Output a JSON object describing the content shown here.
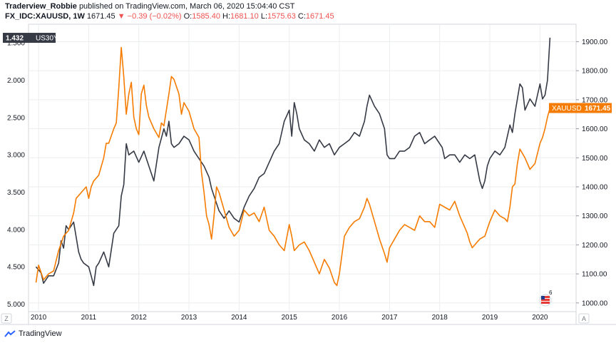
{
  "header": {
    "author": "Traderview_Robbie",
    "published_text": "published on TradingView.com, March 06, 2020 15:04:40 CST",
    "symbol": "FX_IDC:XAUUSD, 1W",
    "last": "1671.45",
    "change": "▼ −0.39 (−0.02%)",
    "o_label": "O:",
    "o_value": "1585.40",
    "h_label": "H:",
    "h_value": "1681.10",
    "l_label": "L:",
    "l_value": "1575.63",
    "c_label": "C:",
    "c_value": "1671.45"
  },
  "footer": {
    "brand": "TradingView"
  },
  "chart_data": {
    "type": "line",
    "x_ticks": [
      "2010",
      "2011",
      "2012",
      "2013",
      "2014",
      "2015",
      "2016",
      "2017",
      "2018",
      "2019",
      "2020"
    ],
    "left_axis": {
      "ticks": [
        "1.500",
        "2.000",
        "2.500",
        "3.000",
        "3.500",
        "4.000",
        "4.500",
        "5.000"
      ],
      "inverted": true,
      "range": [
        1.25,
        5.1
      ]
    },
    "right_axis": {
      "ticks": [
        "1000.00",
        "1100.00",
        "1200.00",
        "1300.00",
        "1400.00",
        "1500.00",
        "1600.00",
        "1700.00",
        "1800.00",
        "1900.00"
      ],
      "range": [
        970,
        1960
      ]
    },
    "left_badge": {
      "value": "1.432",
      "name": "US30Y"
    },
    "right_badge": {
      "name": "XAUUSD",
      "value": "1671.45"
    },
    "corner_left": "Z",
    "corner_right": "A",
    "event_badge": "6",
    "colors": {
      "gold": "#f57c00",
      "us30y": "#363a45",
      "grid": "#ecedef"
    },
    "series": [
      {
        "name": "US30Y",
        "axis": "left",
        "x": [
          2009.95,
          2010.05,
          2010.1,
          2010.2,
          2010.3,
          2010.4,
          2010.45,
          2010.5,
          2010.55,
          2010.6,
          2010.7,
          2010.8,
          2010.85,
          2010.9,
          2011.0,
          2011.05,
          2011.1,
          2011.15,
          2011.2,
          2011.3,
          2011.4,
          2011.5,
          2011.6,
          2011.65,
          2011.7,
          2011.75,
          2011.8,
          2011.9,
          2012.0,
          2012.1,
          2012.2,
          2012.3,
          2012.4,
          2012.5,
          2012.55,
          2012.6,
          2012.65,
          2012.7,
          2012.8,
          2012.9,
          2013.0,
          2013.1,
          2013.2,
          2013.3,
          2013.4,
          2013.45,
          2013.5,
          2013.55,
          2013.6,
          2013.7,
          2013.8,
          2013.9,
          2014.0,
          2014.1,
          2014.2,
          2014.3,
          2014.4,
          2014.5,
          2014.6,
          2014.7,
          2014.8,
          2014.9,
          2015.0,
          2015.05,
          2015.1,
          2015.15,
          2015.2,
          2015.3,
          2015.4,
          2015.5,
          2015.6,
          2015.7,
          2015.8,
          2015.9,
          2016.0,
          2016.1,
          2016.2,
          2016.3,
          2016.4,
          2016.5,
          2016.55,
          2016.6,
          2016.7,
          2016.8,
          2016.9,
          2016.95,
          2017.0,
          2017.1,
          2017.2,
          2017.3,
          2017.4,
          2017.5,
          2017.6,
          2017.7,
          2017.8,
          2017.9,
          2018.0,
          2018.05,
          2018.1,
          2018.2,
          2018.3,
          2018.4,
          2018.5,
          2018.6,
          2018.7,
          2018.8,
          2018.85,
          2018.9,
          2018.95,
          2019.0,
          2019.1,
          2019.2,
          2019.3,
          2019.4,
          2019.45,
          2019.5,
          2019.55,
          2019.6,
          2019.65,
          2019.7,
          2019.8,
          2019.9,
          2020.0,
          2020.05,
          2020.1,
          2020.15,
          2020.2
        ],
        "values": [
          4.5,
          4.58,
          4.72,
          4.62,
          4.62,
          4.45,
          4.15,
          4.25,
          3.95,
          4.0,
          3.9,
          4.3,
          4.4,
          4.45,
          4.5,
          4.62,
          4.75,
          4.5,
          4.45,
          4.3,
          4.5,
          4.05,
          3.95,
          3.55,
          3.4,
          2.85,
          3.0,
          2.95,
          3.1,
          2.95,
          3.15,
          3.35,
          2.9,
          2.65,
          2.75,
          2.55,
          2.85,
          2.9,
          2.85,
          2.75,
          2.8,
          2.95,
          3.05,
          3.15,
          3.3,
          3.45,
          3.55,
          3.65,
          3.75,
          3.85,
          3.75,
          3.85,
          3.9,
          3.7,
          3.55,
          3.45,
          3.3,
          3.25,
          3.1,
          2.95,
          2.85,
          2.55,
          2.4,
          2.75,
          2.3,
          2.45,
          2.65,
          2.8,
          2.85,
          2.95,
          2.8,
          2.9,
          2.85,
          3.0,
          2.9,
          2.85,
          2.8,
          2.7,
          2.75,
          2.55,
          2.35,
          2.2,
          2.35,
          2.45,
          2.65,
          3.0,
          3.05,
          3.05,
          2.95,
          2.95,
          2.9,
          2.75,
          2.7,
          2.85,
          2.8,
          2.75,
          2.85,
          2.9,
          3.05,
          3.0,
          3.0,
          3.1,
          3.0,
          3.05,
          3.0,
          3.35,
          3.45,
          3.35,
          3.15,
          3.05,
          2.95,
          3.0,
          2.9,
          2.6,
          2.7,
          2.45,
          2.25,
          2.05,
          2.1,
          2.4,
          2.25,
          2.35,
          2.05,
          2.25,
          2.2,
          2.0,
          1.43
        ]
      },
      {
        "name": "XAUUSD",
        "axis": "right",
        "x": [
          2009.95,
          2010.0,
          2010.1,
          2010.2,
          2010.3,
          2010.4,
          2010.5,
          2010.6,
          2010.7,
          2010.75,
          2010.85,
          2010.95,
          2011.0,
          2011.05,
          2011.1,
          2011.2,
          2011.3,
          2011.35,
          2011.4,
          2011.5,
          2011.55,
          2011.6,
          2011.65,
          2011.7,
          2011.75,
          2011.8,
          2011.85,
          2011.9,
          2011.95,
          2012.0,
          2012.05,
          2012.1,
          2012.15,
          2012.2,
          2012.3,
          2012.4,
          2012.45,
          2012.5,
          2012.6,
          2012.65,
          2012.7,
          2012.8,
          2012.85,
          2012.9,
          2013.0,
          2013.1,
          2013.2,
          2013.25,
          2013.3,
          2013.35,
          2013.4,
          2013.45,
          2013.5,
          2013.55,
          2013.6,
          2013.7,
          2013.8,
          2013.9,
          2014.0,
          2014.1,
          2014.2,
          2014.3,
          2014.4,
          2014.5,
          2014.6,
          2014.7,
          2014.8,
          2014.9,
          2015.0,
          2015.05,
          2015.1,
          2015.2,
          2015.3,
          2015.4,
          2015.5,
          2015.6,
          2015.7,
          2015.8,
          2015.9,
          2015.95,
          2016.0,
          2016.1,
          2016.2,
          2016.3,
          2016.4,
          2016.5,
          2016.55,
          2016.6,
          2016.7,
          2016.8,
          2016.9,
          2016.95,
          2017.0,
          2017.1,
          2017.2,
          2017.3,
          2017.4,
          2017.5,
          2017.6,
          2017.7,
          2017.8,
          2017.9,
          2018.0,
          2018.1,
          2018.2,
          2018.3,
          2018.4,
          2018.5,
          2018.55,
          2018.6,
          2018.65,
          2018.7,
          2018.8,
          2018.9,
          2019.0,
          2019.1,
          2019.2,
          2019.3,
          2019.35,
          2019.4,
          2019.45,
          2019.5,
          2019.55,
          2019.6,
          2019.7,
          2019.8,
          2019.9,
          2020.0,
          2020.05,
          2020.1,
          2020.15,
          2020.2
        ],
        "values": [
          1070,
          1130,
          1080,
          1100,
          1110,
          1180,
          1230,
          1250,
          1310,
          1360,
          1380,
          1400,
          1360,
          1400,
          1420,
          1440,
          1500,
          1550,
          1550,
          1600,
          1620,
          1740,
          1880,
          1780,
          1650,
          1720,
          1760,
          1640,
          1600,
          1580,
          1720,
          1750,
          1680,
          1640,
          1600,
          1570,
          1620,
          1610,
          1720,
          1780,
          1770,
          1720,
          1650,
          1690,
          1660,
          1600,
          1570,
          1450,
          1380,
          1300,
          1270,
          1220,
          1300,
          1400,
          1380,
          1320,
          1260,
          1230,
          1250,
          1320,
          1300,
          1310,
          1280,
          1330,
          1250,
          1230,
          1200,
          1180,
          1270,
          1230,
          1180,
          1200,
          1210,
          1180,
          1140,
          1100,
          1150,
          1120,
          1070,
          1060,
          1100,
          1230,
          1260,
          1280,
          1290,
          1330,
          1360,
          1340,
          1280,
          1220,
          1170,
          1140,
          1190,
          1220,
          1250,
          1270,
          1260,
          1250,
          1300,
          1280,
          1280,
          1260,
          1340,
          1330,
          1320,
          1350,
          1300,
          1260,
          1240,
          1210,
          1190,
          1200,
          1220,
          1230,
          1280,
          1320,
          1300,
          1290,
          1280,
          1330,
          1400,
          1410,
          1480,
          1530,
          1500,
          1460,
          1480,
          1550,
          1570,
          1600,
          1640,
          1671.45
        ]
      }
    ]
  }
}
